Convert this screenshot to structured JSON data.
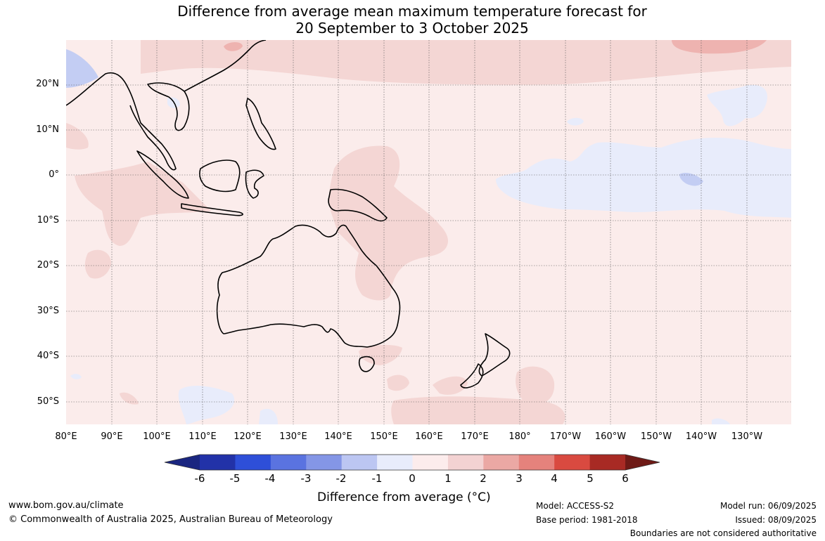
{
  "title_line1": "Difference from average mean maximum temperature forecast for",
  "title_line2": "20 September to 3 October 2025",
  "lat_labels": [
    "20°N",
    "10°N",
    "0°",
    "10°S",
    "20°S",
    "30°S",
    "40°S",
    "50°S"
  ],
  "lon_labels": [
    "80°E",
    "90°E",
    "100°E",
    "110°E",
    "120°E",
    "130°E",
    "140°E",
    "150°E",
    "160°E",
    "170°E",
    "180°",
    "170°W",
    "160°W",
    "150°W",
    "140°W",
    "130°W"
  ],
  "colorbar": {
    "ticks": [
      "-6",
      "-5",
      "-4",
      "-3",
      "-2",
      "-1",
      "0",
      "1",
      "2",
      "3",
      "4",
      "5",
      "6"
    ],
    "colors": [
      "#1a2680",
      "#2232a8",
      "#2e4fd8",
      "#5a73e0",
      "#8496e6",
      "#bcc6f2",
      "#e8ecfb",
      "#fcecec",
      "#f3d2d2",
      "#eba8a4",
      "#e5827c",
      "#d94a40",
      "#a82a24",
      "#6e1a16"
    ],
    "label_prefix": "Difference from average (",
    "label_unit": "°C",
    "label_suffix": ")"
  },
  "footer": {
    "website": "www.bom.gov.au/climate",
    "copyright": "© Commonwealth of Australia 2025, Australian Bureau of Meteorology",
    "model": "Model: ACCESS-S2",
    "base_period": "Base period: 1981-2018",
    "model_run": "Model run: 06/09/2025",
    "issued": "Issued: 08/09/2025",
    "disclaimer": "Boundaries are not considered authoritative"
  },
  "map_colors": {
    "base": "#fbeceb",
    "warm1": "#f4d6d4",
    "warm2": "#eeb3b0",
    "cool1": "#e8ecfb",
    "cool2": "#c3cdf3"
  }
}
